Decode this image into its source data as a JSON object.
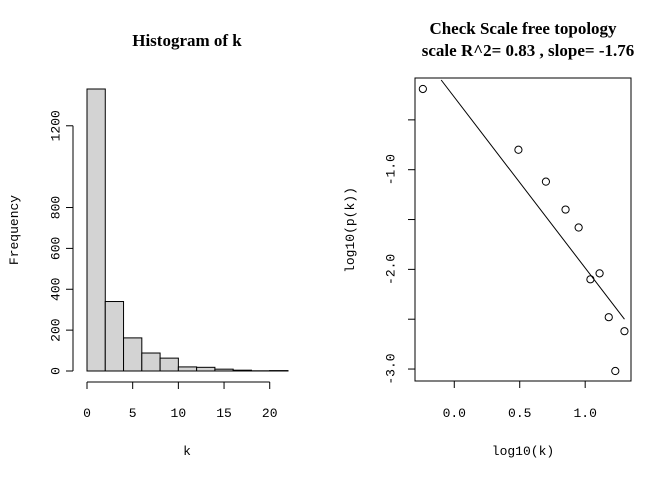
{
  "chart_data": [
    {
      "type": "bar",
      "title": "Histogram of k",
      "xlabel": "k",
      "ylabel": "Frequency",
      "bin_edges": [
        0,
        2,
        4,
        6,
        8,
        10,
        12,
        14,
        16,
        18,
        20,
        22
      ],
      "values": [
        1380,
        340,
        162,
        88,
        63,
        20,
        18,
        9,
        4,
        1,
        2
      ],
      "xlim": [
        0,
        22
      ],
      "ylim": [
        0,
        1380
      ],
      "xticks": [
        0,
        5,
        10,
        15,
        20
      ],
      "xtick_labels": [
        "0",
        "5",
        "10",
        "15",
        "20"
      ],
      "yticks": [
        0,
        200,
        400,
        600,
        800,
        1200
      ],
      "ytick_labels": [
        "0",
        "200",
        "400",
        "600",
        "800",
        "1200"
      ],
      "colors": {
        "bar_fill": "#d3d3d3",
        "bar_stroke": "#000000"
      }
    },
    {
      "type": "scatter",
      "title": "Check Scale free topology",
      "subtitle": "scale R^2= 0.83 , slope= -1.76",
      "xlabel": "log10(k)",
      "ylabel": "log10(p(k))",
      "points": [
        {
          "x": -0.24,
          "y": -0.19
        },
        {
          "x": 0.49,
          "y": -0.8
        },
        {
          "x": 0.7,
          "y": -1.12
        },
        {
          "x": 0.85,
          "y": -1.4
        },
        {
          "x": 0.95,
          "y": -1.58
        },
        {
          "x": 1.04,
          "y": -2.1
        },
        {
          "x": 1.11,
          "y": -2.04
        },
        {
          "x": 1.18,
          "y": -2.48
        },
        {
          "x": 1.23,
          "y": -3.02
        },
        {
          "x": 1.3,
          "y": -2.62
        }
      ],
      "fit_line": {
        "x": [
          -0.1,
          1.3
        ],
        "y": [
          -0.1,
          -2.5
        ]
      },
      "xlim": [
        -0.3,
        1.35
      ],
      "ylim": [
        -3.12,
        -0.08
      ],
      "xticks": [
        0.0,
        0.5,
        1.0
      ],
      "xtick_labels": [
        "0.0",
        "0.5",
        "1.0"
      ],
      "yticks": [
        -0.5,
        -1.0,
        -1.5,
        -2.0,
        -2.5,
        -3.0
      ],
      "ytick_labels": [
        "",
        "-1.0",
        "",
        "-2.0",
        "",
        "-3.0"
      ],
      "colors": {
        "point_stroke": "#000000",
        "line": "#000000"
      }
    }
  ]
}
